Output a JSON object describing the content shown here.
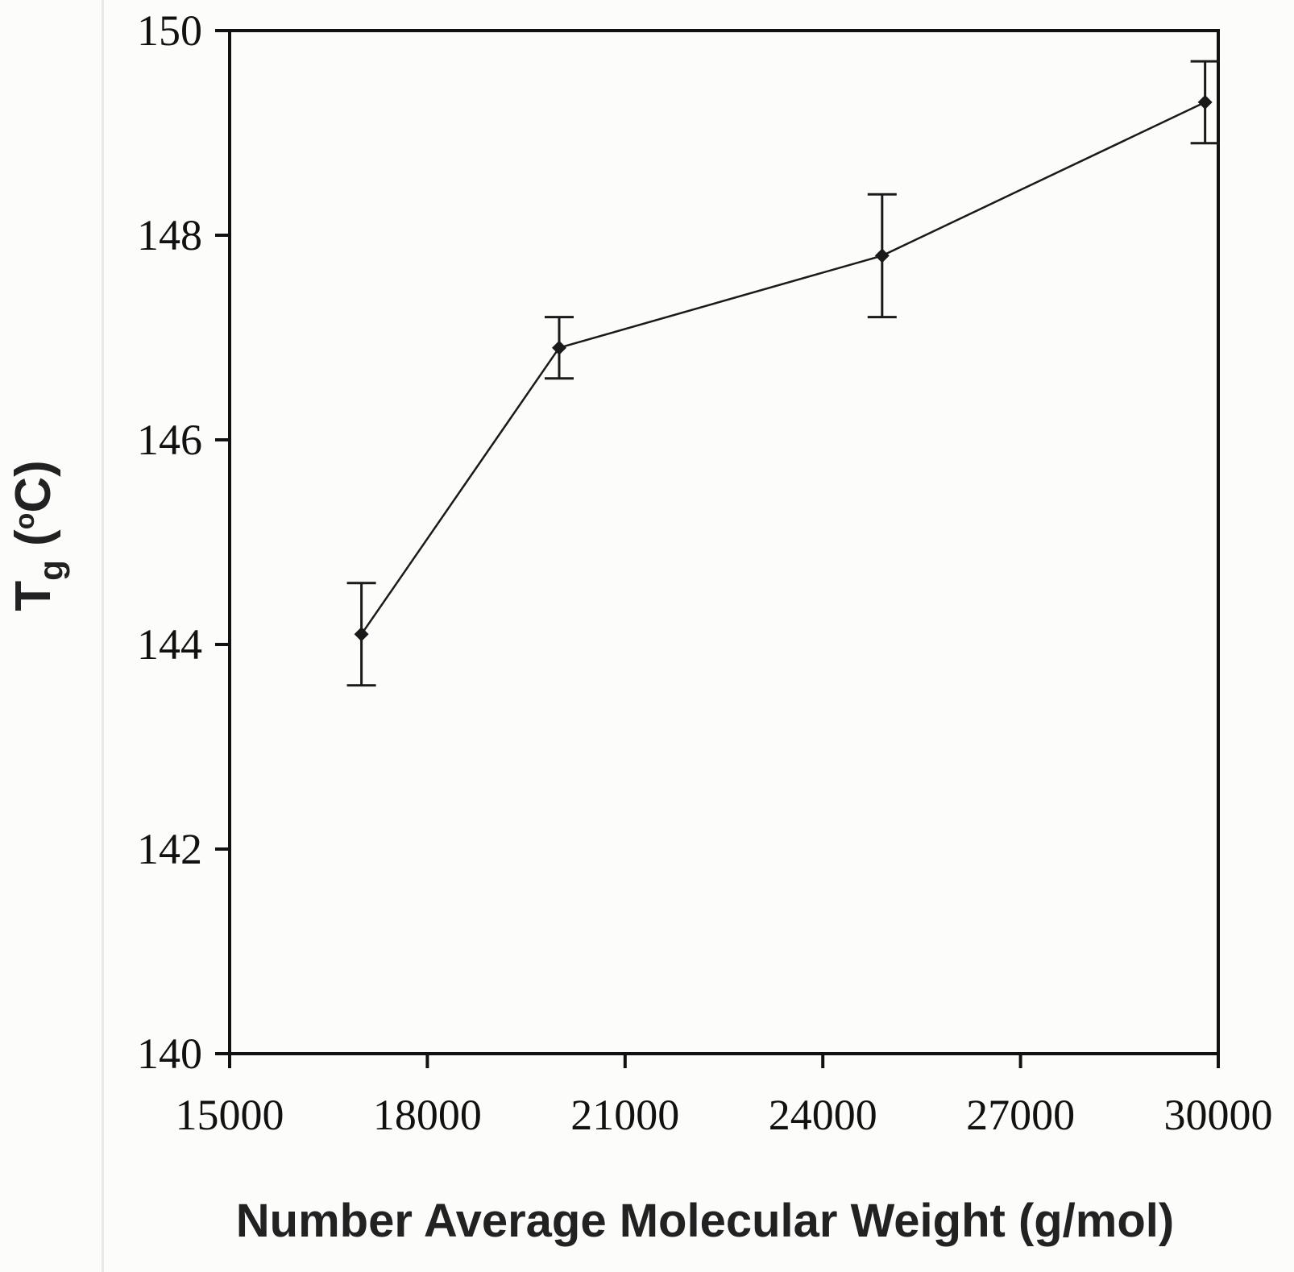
{
  "chart_data": {
    "type": "line",
    "title": "",
    "xlabel": "Number Average Molecular Weight (g/mol)",
    "ylabel": "Tg (oC)",
    "ylabel_parts": {
      "symbol": "T",
      "subscript": "g",
      "unit_prefix": " (",
      "degree": "o",
      "unit_suffix": "C)"
    },
    "x": [
      17000,
      20000,
      24900,
      29800
    ],
    "y": [
      144.1,
      146.9,
      147.8,
      149.3
    ],
    "yerr": [
      0.5,
      0.3,
      0.6,
      0.4
    ],
    "xlim": [
      15000,
      30000
    ],
    "ylim": [
      140,
      150
    ],
    "xticks": [
      15000,
      18000,
      21000,
      24000,
      27000,
      30000
    ],
    "yticks": [
      140,
      142,
      144,
      146,
      148,
      150
    ],
    "marker": "diamond",
    "grid": false,
    "legend": null,
    "line_color": "#1a1a1a",
    "axis_color": "#111111"
  }
}
